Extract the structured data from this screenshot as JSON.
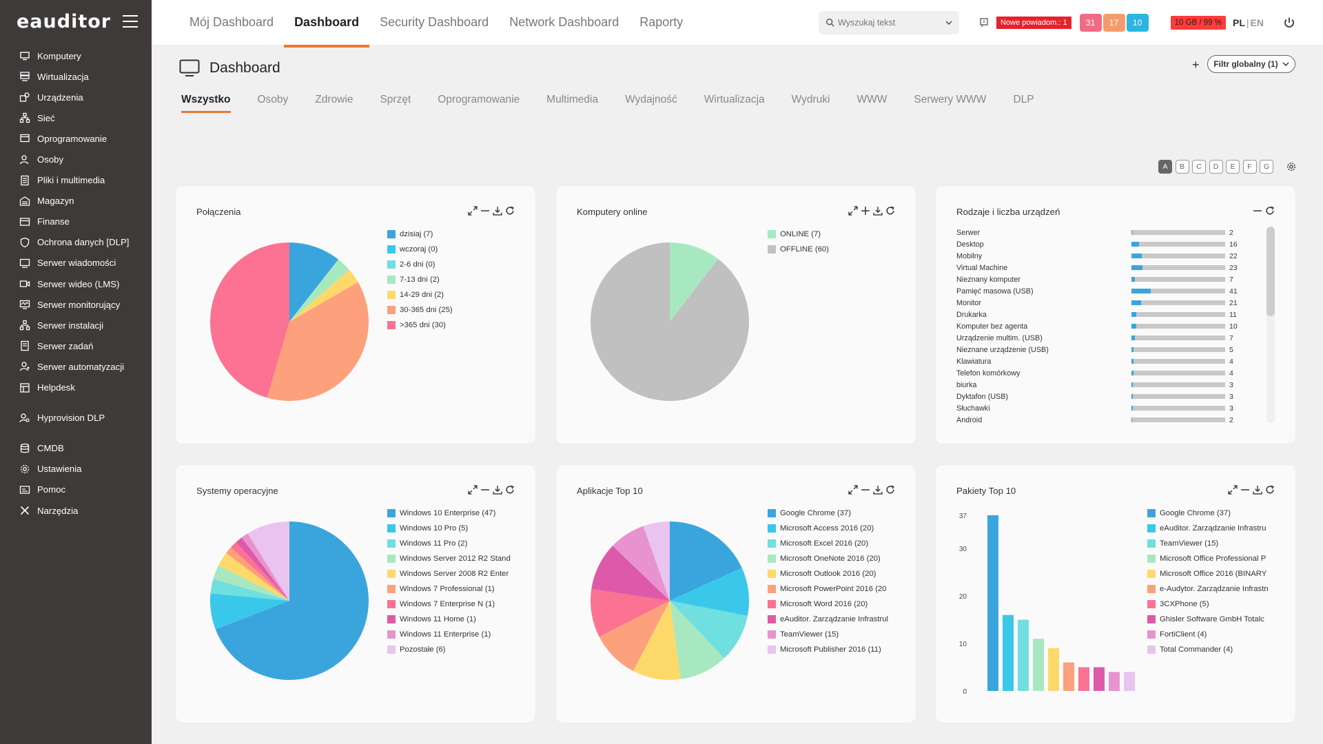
{
  "app": {
    "logo": "eauditor",
    "title": "Dashboard"
  },
  "sidebar": {
    "items": [
      {
        "label": "Komputery",
        "icon": "computer-icon"
      },
      {
        "label": "Wirtualizacja",
        "icon": "server-stack-icon"
      },
      {
        "label": "Urządzenia",
        "icon": "devices-icon"
      },
      {
        "label": "Sieć",
        "icon": "network-icon"
      },
      {
        "label": "Oprogramowanie",
        "icon": "software-icon"
      },
      {
        "label": "Osoby",
        "icon": "people-icon"
      },
      {
        "label": "Pliki i multimedia",
        "icon": "file-icon"
      },
      {
        "label": "Magazyn",
        "icon": "warehouse-icon"
      },
      {
        "label": "Finanse",
        "icon": "wallet-icon"
      },
      {
        "label": "Ochrona danych [DLP]",
        "icon": "shield-icon"
      },
      {
        "label": "Serwer wiadomości",
        "icon": "message-icon"
      },
      {
        "label": "Serwer wideo (LMS)",
        "icon": "video-icon"
      },
      {
        "label": "Serwer monitorujący",
        "icon": "monitoring-icon"
      },
      {
        "label": "Serwer instalacji",
        "icon": "install-icon"
      },
      {
        "label": "Serwer zadań",
        "icon": "tasks-icon"
      },
      {
        "label": "Serwer automatyzacji",
        "icon": "automation-icon"
      },
      {
        "label": "Helpdesk",
        "icon": "helpdesk-icon"
      }
    ],
    "items2": [
      {
        "label": "Hyprovision DLP",
        "icon": "user-key-icon"
      }
    ],
    "items3": [
      {
        "label": "CMDB",
        "icon": "database-icon"
      },
      {
        "label": "Ustawienia",
        "icon": "gear-icon"
      },
      {
        "label": "Pomoc",
        "icon": "help-icon"
      },
      {
        "label": "Narzędzia",
        "icon": "tools-icon"
      }
    ]
  },
  "topbar": {
    "tabs": [
      "Mój Dashboard",
      "Dashboard",
      "Security Dashboard",
      "Network Dashboard",
      "Raporty"
    ],
    "active_tab": 1,
    "search_placeholder": "Wyszukaj tekst",
    "alert": "Nowe powiadom.: 1",
    "counters": [
      "31",
      "17",
      "10"
    ],
    "storage": "10 GB / 99 %",
    "lang_pl": "PL",
    "lang_sep": "|",
    "lang_en": "EN"
  },
  "page": {
    "title": "Dashboard",
    "filter": "Filtr globalny (1)",
    "plus": "+",
    "sub_tabs": [
      "Wszystko",
      "Osoby",
      "Zdrowie",
      "Sprzęt",
      "Oprogramowanie",
      "Multimedia",
      "Wydajność",
      "Wirtualizacja",
      "Wydruki",
      "WWW",
      "Serwery WWW",
      "DLP"
    ],
    "layout_buttons": [
      "A",
      "B",
      "C",
      "D",
      "E",
      "F",
      "G"
    ]
  },
  "colors": [
    "#3aa5dd",
    "#3ac8ea",
    "#6fdfe0",
    "#a8e8c0",
    "#fdd96a",
    "#fda07c",
    "#fb7292",
    "#de5aa8",
    "#e893d0",
    "#e8c4ee",
    "#c0c0c0"
  ],
  "cards": {
    "polaczenia": {
      "title": "Połączenia",
      "legend": [
        "dzisiaj (7)",
        "wczoraj (0)",
        "2-6 dni (0)",
        "7-13 dni (2)",
        "14-29 dni (2)",
        "30-365 dni (25)",
        ">365 dni (30)"
      ]
    },
    "online": {
      "title": "Komputery online",
      "legend": [
        "ONLINE (7)",
        "OFFLINE (60)"
      ]
    },
    "rodzaje": {
      "title": "Rodzaje i liczba urządzeń"
    },
    "systemy": {
      "title": "Systemy operacyjne",
      "legend": [
        "Windows 10 Enterprise (47)",
        "Windows 10 Pro (5)",
        "Windows 11 Pro (2)",
        "Windows Server 2012 R2 Stand",
        "Windows Server 2008 R2 Enter",
        "Windows 7 Professional (1)",
        "Windows 7 Enterprise N (1)",
        "Windows 11 Home (1)",
        "Windows 11 Enterprise (1)",
        "Pozostałe (6)"
      ]
    },
    "aplikacje": {
      "title": "Aplikacje Top 10",
      "legend": [
        "Google Chrome (37)",
        "Microsoft Access 2016 (20)",
        "Microsoft Excel 2016 (20)",
        "Microsoft OneNote 2016 (20)",
        "Microsoft Outlook 2016 (20)",
        "Microsoft PowerPoint 2016 (20",
        "Microsoft Word 2016 (20)",
        "eAuditor. Zarządzanie Infrastrul",
        "TeamViewer (15)",
        "Microsoft Publisher 2016 (11)"
      ]
    },
    "pakiety": {
      "title": "Pakiety Top 10",
      "legend": [
        "Google Chrome (37)",
        "eAuditor. Zarządzanie Infrastru",
        "TeamViewer (15)",
        "Microsoft Office Professional P",
        "Microsoft Office 2016 (BINARY",
        "e-Audytor. Zarządzanie Infrastn",
        "3CXPhone (5)",
        "Ghisler Software GmbH Totalc",
        "FortiClient (4)",
        "Total Commander (4)"
      ]
    }
  },
  "chart_data": [
    {
      "type": "pie",
      "title": "Połączenia",
      "categories": [
        "dzisiaj",
        "wczoraj",
        "2-6 dni",
        "7-13 dni",
        "14-29 dni",
        "30-365 dni",
        ">365 dni"
      ],
      "values": [
        7,
        0,
        0,
        2,
        2,
        25,
        30
      ]
    },
    {
      "type": "pie",
      "title": "Komputery online",
      "categories": [
        "ONLINE",
        "OFFLINE"
      ],
      "values": [
        7,
        60
      ],
      "colors": [
        "#a8e8c0",
        "#c0c0c0"
      ]
    },
    {
      "type": "bar",
      "title": "Rodzaje i liczba urządzeń",
      "categories": [
        "Serwer",
        "Desktop",
        "Mobilny",
        "Virtual Machine",
        "Nieznany komputer",
        "Pamięć masowa (USB)",
        "Monitor",
        "Drukarka",
        "Komputer bez agenta",
        "Urządzenie multim. (USB)",
        "Nieznane urządzenie (USB)",
        "Klawiatura",
        "Telefon komórkowy",
        "biurka",
        "Dyktafon (USB)",
        "Słuchawki",
        "Android"
      ],
      "values": [
        2,
        16,
        22,
        23,
        7,
        41,
        21,
        11,
        10,
        7,
        5,
        4,
        4,
        3,
        3,
        3,
        2
      ]
    },
    {
      "type": "pie",
      "title": "Systemy operacyjne",
      "categories": [
        "Windows 10 Enterprise",
        "Windows 10 Pro",
        "Windows 11 Pro",
        "Windows Server 2012 R2 Stand",
        "Windows Server 2008 R2 Enter",
        "Windows 7 Professional",
        "Windows 7 Enterprise N",
        "Windows 11 Home",
        "Windows 11 Enterprise",
        "Pozostałe"
      ],
      "values": [
        47,
        5,
        2,
        2,
        2,
        1,
        1,
        1,
        1,
        6
      ]
    },
    {
      "type": "pie",
      "title": "Aplikacje Top 10",
      "categories": [
        "Google Chrome",
        "Microsoft Access 2016",
        "Microsoft Excel 2016",
        "Microsoft OneNote 2016",
        "Microsoft Outlook 2016",
        "Microsoft PowerPoint 2016",
        "Microsoft Word 2016",
        "eAuditor. Zarządzanie Infrastruktura",
        "TeamViewer",
        "Microsoft Publisher 2016"
      ],
      "values": [
        37,
        20,
        20,
        20,
        20,
        20,
        20,
        20,
        15,
        11
      ]
    },
    {
      "type": "bar",
      "title": "Pakiety Top 10",
      "categories": [
        "Google Chrome",
        "eAuditor. Zarządzanie Infrastru",
        "TeamViewer",
        "Microsoft Office Professional P",
        "Microsoft Office 2016 (BINARY",
        "e-Audytor. Zarządzanie Infrastn",
        "3CXPhone",
        "Ghisler Software GmbH Totalc",
        "FortiClient",
        "Total Commander"
      ],
      "values": [
        37,
        16,
        15,
        11,
        9,
        6,
        5,
        5,
        4,
        4
      ],
      "ylim": [
        0,
        37
      ],
      "yticks": [
        0,
        10,
        20,
        30,
        37
      ]
    }
  ]
}
